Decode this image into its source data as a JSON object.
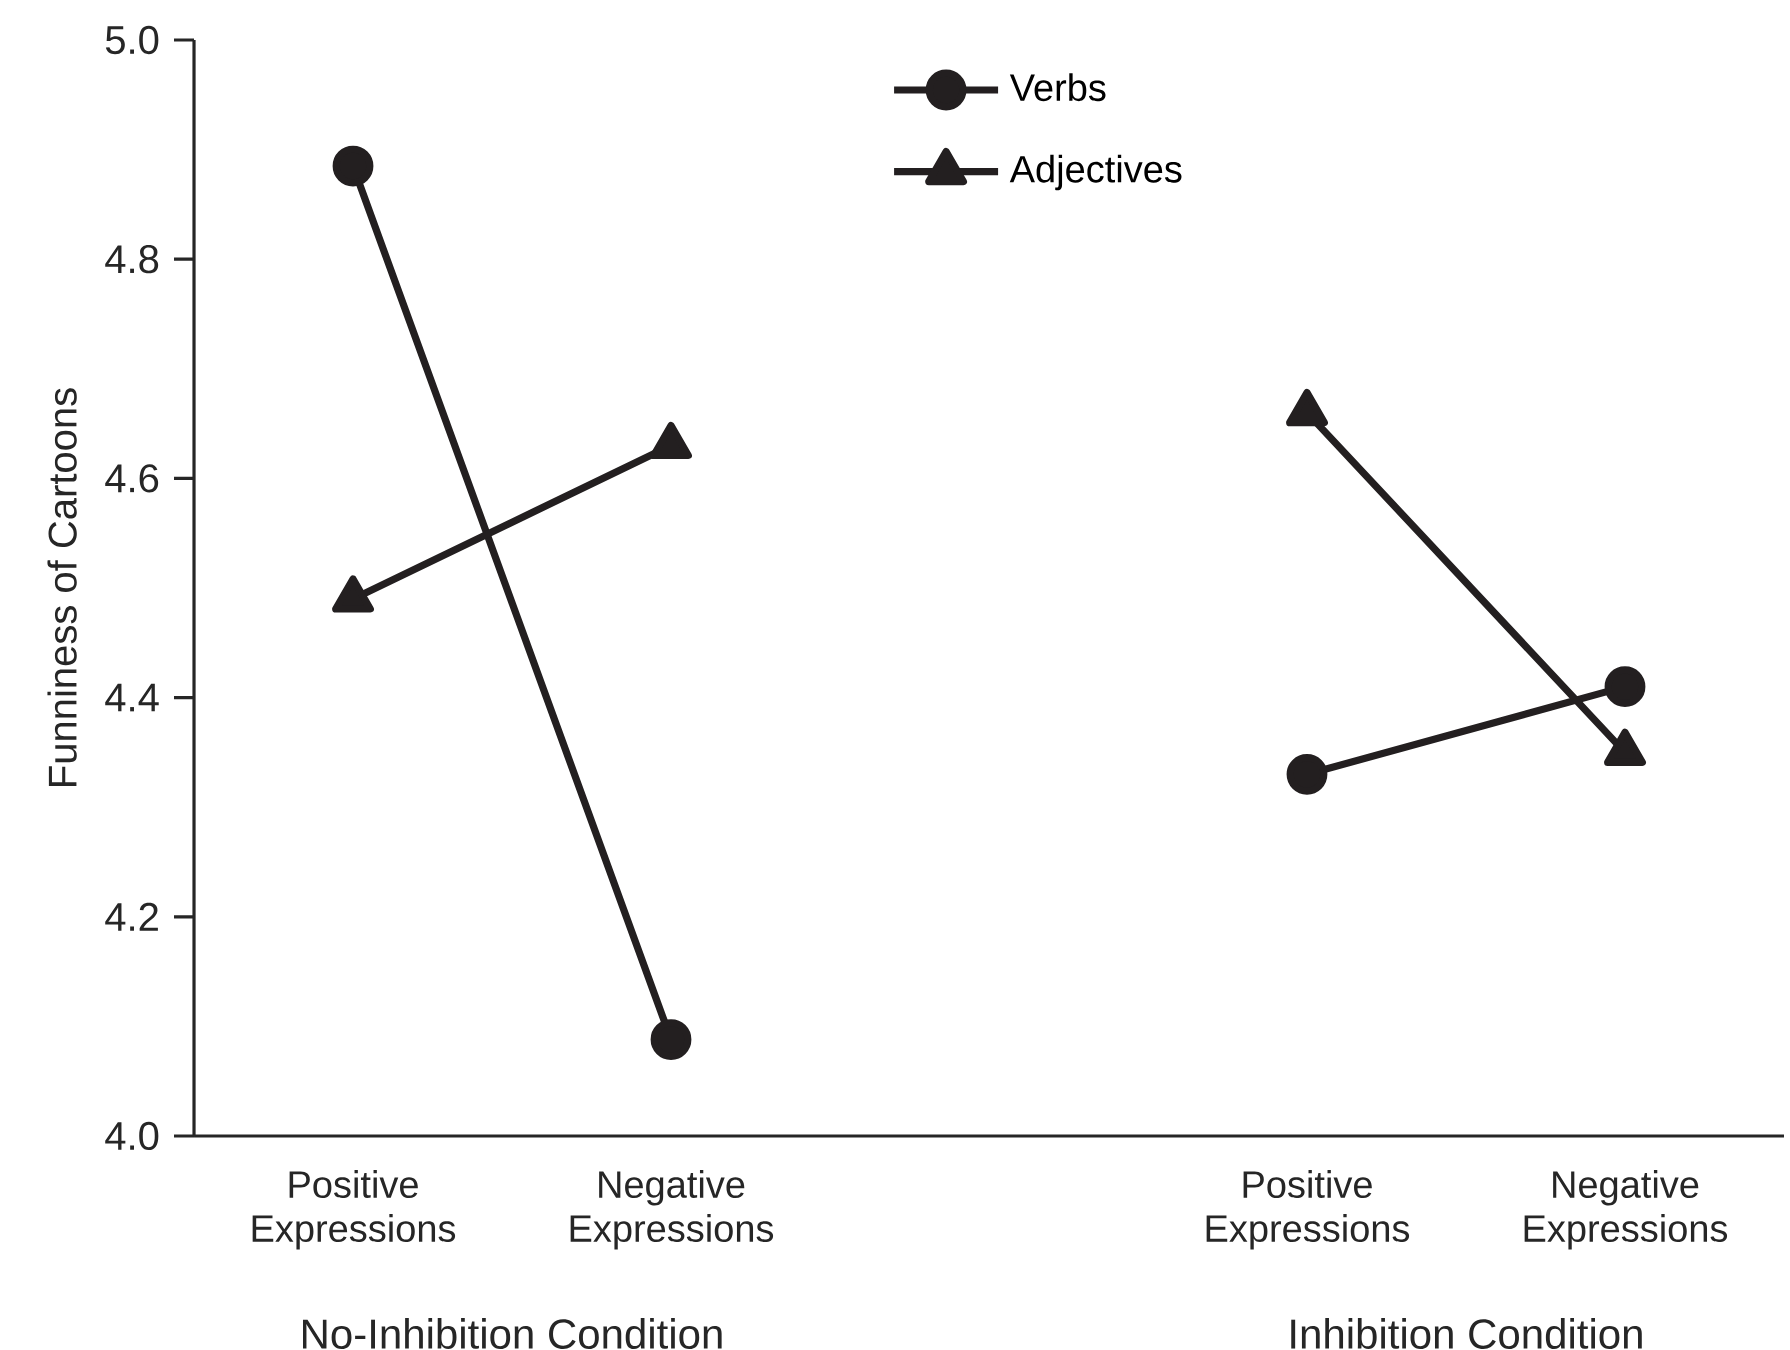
{
  "chart_data": {
    "type": "line",
    "ylabel": "Funniness of Cartoons",
    "categories": [
      "Positive Expressions",
      "Negative Expressions",
      null,
      "Positive Expressions",
      "Negative Expressions"
    ],
    "series": [
      {
        "name": "Verbs",
        "color": "#231f20",
        "marker": "circle",
        "values": [
          4.885,
          4.088,
          null,
          4.33,
          4.41
        ]
      },
      {
        "name": "Adjectives",
        "color": "#231f20",
        "marker": "triangle",
        "values": [
          4.49,
          4.63,
          null,
          4.66,
          4.35
        ]
      }
    ],
    "ylim": [
      4.0,
      5.0
    ],
    "yticks": [
      {
        "value": 4,
        "label": "4.0"
      },
      4.2,
      4.4,
      4.6,
      4.8,
      {
        "value": 5,
        "label": "5.0"
      }
    ],
    "legend": "top",
    "line_style": "solid",
    "grid": false,
    "annotations": [
      "No-Inhibition Condition",
      "Inhibition Condition"
    ]
  }
}
